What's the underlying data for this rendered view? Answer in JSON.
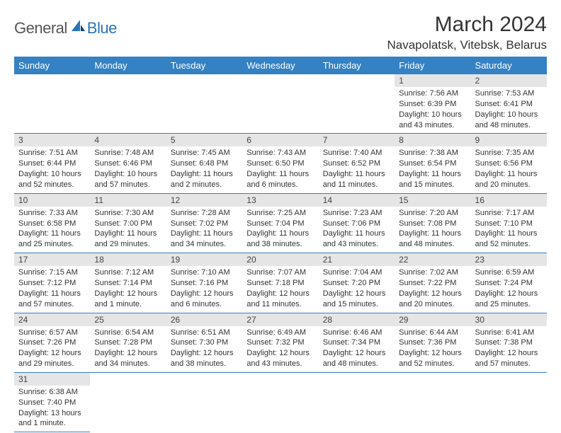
{
  "logo": {
    "g": "General",
    "b": "Blue"
  },
  "title": "March 2024",
  "location": "Navapolatsk, Vitebsk, Belarus",
  "colors": {
    "header_bg": "#3481c4",
    "header_fg": "#ffffff",
    "daynum_bg": "#e5e5e5",
    "grid_line": "#3481c4",
    "logo_dark": "#555555",
    "logo_blue": "#2a74b8"
  },
  "day_headers": [
    "Sunday",
    "Monday",
    "Tuesday",
    "Wednesday",
    "Thursday",
    "Friday",
    "Saturday"
  ],
  "weeks": [
    [
      null,
      null,
      null,
      null,
      null,
      {
        "n": "1",
        "sr": "Sunrise: 7:56 AM",
        "ss": "Sunset: 6:39 PM",
        "dl": "Daylight: 10 hours and 43 minutes."
      },
      {
        "n": "2",
        "sr": "Sunrise: 7:53 AM",
        "ss": "Sunset: 6:41 PM",
        "dl": "Daylight: 10 hours and 48 minutes."
      }
    ],
    [
      {
        "n": "3",
        "sr": "Sunrise: 7:51 AM",
        "ss": "Sunset: 6:44 PM",
        "dl": "Daylight: 10 hours and 52 minutes."
      },
      {
        "n": "4",
        "sr": "Sunrise: 7:48 AM",
        "ss": "Sunset: 6:46 PM",
        "dl": "Daylight: 10 hours and 57 minutes."
      },
      {
        "n": "5",
        "sr": "Sunrise: 7:45 AM",
        "ss": "Sunset: 6:48 PM",
        "dl": "Daylight: 11 hours and 2 minutes."
      },
      {
        "n": "6",
        "sr": "Sunrise: 7:43 AM",
        "ss": "Sunset: 6:50 PM",
        "dl": "Daylight: 11 hours and 6 minutes."
      },
      {
        "n": "7",
        "sr": "Sunrise: 7:40 AM",
        "ss": "Sunset: 6:52 PM",
        "dl": "Daylight: 11 hours and 11 minutes."
      },
      {
        "n": "8",
        "sr": "Sunrise: 7:38 AM",
        "ss": "Sunset: 6:54 PM",
        "dl": "Daylight: 11 hours and 15 minutes."
      },
      {
        "n": "9",
        "sr": "Sunrise: 7:35 AM",
        "ss": "Sunset: 6:56 PM",
        "dl": "Daylight: 11 hours and 20 minutes."
      }
    ],
    [
      {
        "n": "10",
        "sr": "Sunrise: 7:33 AM",
        "ss": "Sunset: 6:58 PM",
        "dl": "Daylight: 11 hours and 25 minutes."
      },
      {
        "n": "11",
        "sr": "Sunrise: 7:30 AM",
        "ss": "Sunset: 7:00 PM",
        "dl": "Daylight: 11 hours and 29 minutes."
      },
      {
        "n": "12",
        "sr": "Sunrise: 7:28 AM",
        "ss": "Sunset: 7:02 PM",
        "dl": "Daylight: 11 hours and 34 minutes."
      },
      {
        "n": "13",
        "sr": "Sunrise: 7:25 AM",
        "ss": "Sunset: 7:04 PM",
        "dl": "Daylight: 11 hours and 38 minutes."
      },
      {
        "n": "14",
        "sr": "Sunrise: 7:23 AM",
        "ss": "Sunset: 7:06 PM",
        "dl": "Daylight: 11 hours and 43 minutes."
      },
      {
        "n": "15",
        "sr": "Sunrise: 7:20 AM",
        "ss": "Sunset: 7:08 PM",
        "dl": "Daylight: 11 hours and 48 minutes."
      },
      {
        "n": "16",
        "sr": "Sunrise: 7:17 AM",
        "ss": "Sunset: 7:10 PM",
        "dl": "Daylight: 11 hours and 52 minutes."
      }
    ],
    [
      {
        "n": "17",
        "sr": "Sunrise: 7:15 AM",
        "ss": "Sunset: 7:12 PM",
        "dl": "Daylight: 11 hours and 57 minutes."
      },
      {
        "n": "18",
        "sr": "Sunrise: 7:12 AM",
        "ss": "Sunset: 7:14 PM",
        "dl": "Daylight: 12 hours and 1 minute."
      },
      {
        "n": "19",
        "sr": "Sunrise: 7:10 AM",
        "ss": "Sunset: 7:16 PM",
        "dl": "Daylight: 12 hours and 6 minutes."
      },
      {
        "n": "20",
        "sr": "Sunrise: 7:07 AM",
        "ss": "Sunset: 7:18 PM",
        "dl": "Daylight: 12 hours and 11 minutes."
      },
      {
        "n": "21",
        "sr": "Sunrise: 7:04 AM",
        "ss": "Sunset: 7:20 PM",
        "dl": "Daylight: 12 hours and 15 minutes."
      },
      {
        "n": "22",
        "sr": "Sunrise: 7:02 AM",
        "ss": "Sunset: 7:22 PM",
        "dl": "Daylight: 12 hours and 20 minutes."
      },
      {
        "n": "23",
        "sr": "Sunrise: 6:59 AM",
        "ss": "Sunset: 7:24 PM",
        "dl": "Daylight: 12 hours and 25 minutes."
      }
    ],
    [
      {
        "n": "24",
        "sr": "Sunrise: 6:57 AM",
        "ss": "Sunset: 7:26 PM",
        "dl": "Daylight: 12 hours and 29 minutes."
      },
      {
        "n": "25",
        "sr": "Sunrise: 6:54 AM",
        "ss": "Sunset: 7:28 PM",
        "dl": "Daylight: 12 hours and 34 minutes."
      },
      {
        "n": "26",
        "sr": "Sunrise: 6:51 AM",
        "ss": "Sunset: 7:30 PM",
        "dl": "Daylight: 12 hours and 38 minutes."
      },
      {
        "n": "27",
        "sr": "Sunrise: 6:49 AM",
        "ss": "Sunset: 7:32 PM",
        "dl": "Daylight: 12 hours and 43 minutes."
      },
      {
        "n": "28",
        "sr": "Sunrise: 6:46 AM",
        "ss": "Sunset: 7:34 PM",
        "dl": "Daylight: 12 hours and 48 minutes."
      },
      {
        "n": "29",
        "sr": "Sunrise: 6:44 AM",
        "ss": "Sunset: 7:36 PM",
        "dl": "Daylight: 12 hours and 52 minutes."
      },
      {
        "n": "30",
        "sr": "Sunrise: 6:41 AM",
        "ss": "Sunset: 7:38 PM",
        "dl": "Daylight: 12 hours and 57 minutes."
      }
    ],
    [
      {
        "n": "31",
        "sr": "Sunrise: 6:38 AM",
        "ss": "Sunset: 7:40 PM",
        "dl": "Daylight: 13 hours and 1 minute."
      },
      null,
      null,
      null,
      null,
      null,
      null
    ]
  ]
}
